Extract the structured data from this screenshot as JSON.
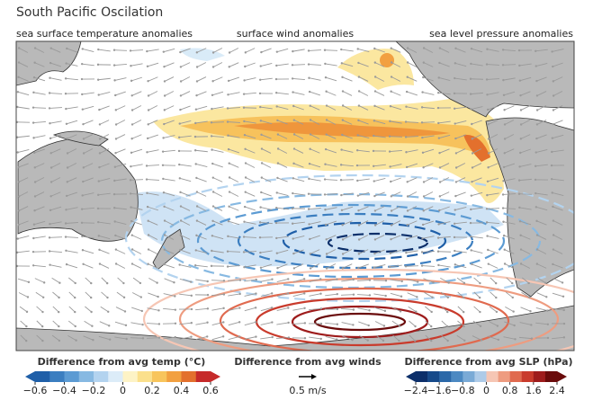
{
  "header": {
    "title": "South Pacific Oscilation"
  },
  "panels": [
    "sea surface temperature anomalies",
    "surface wind anomalies",
    "sea level pressure anomalies"
  ],
  "legends": {
    "temperature": {
      "label": "Difference from avg temp (°C)",
      "range": [
        -0.6,
        0.6
      ],
      "ticks": [
        {
          "value": -0.6,
          "label": "−0.6"
        },
        {
          "value": -0.4,
          "label": "−0.4"
        },
        {
          "value": -0.2,
          "label": "−0.2"
        },
        0,
        0.2,
        0.4,
        0.6
      ],
      "colors": [
        "#1f5fa8",
        "#3b7ec0",
        "#5c9bd3",
        "#87b9e2",
        "#b3d3ef",
        "#dcecf8",
        "#fdf3c6",
        "#fbe08c",
        "#f8c55c",
        "#f2a040",
        "#e3702d",
        "#c62a2a"
      ]
    },
    "winds": {
      "label": "Difference from avg winds",
      "scale_label": "0.5 m/s"
    },
    "pressure": {
      "label": "Difference from avg SLP (hPa)",
      "range": [
        -2.4,
        2.4
      ],
      "ticks": [
        {
          "value": -2.4,
          "label": "−2.4"
        },
        {
          "value": -1.6,
          "label": "−1.6"
        },
        {
          "value": -0.8,
          "label": "−0.8"
        },
        0,
        0.8,
        1.6,
        2.4
      ],
      "colors": [
        "#0c2f6a",
        "#174a8a",
        "#2b68a8",
        "#4c89c2",
        "#7aaad6",
        "#aecbe8",
        "#f6c6b4",
        "#ee9c80",
        "#e06a4f",
        "#c93b2c",
        "#9e1c1c",
        "#6a0b0b"
      ]
    }
  }
}
